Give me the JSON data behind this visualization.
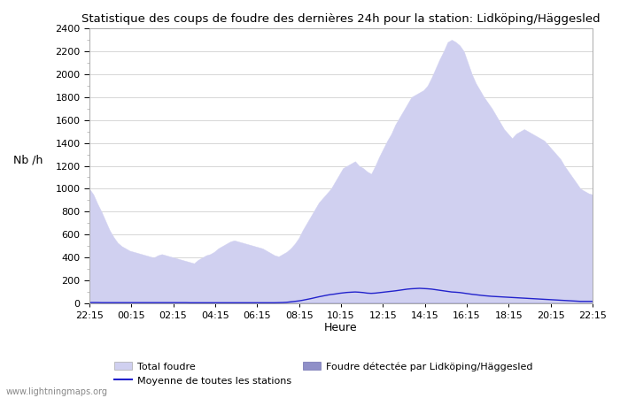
{
  "title": "Statistique des coups de foudre des dernières 24h pour la station: Lidköping/Häggesled",
  "xlabel": "Heure",
  "ylabel": "Nb /h",
  "x_ticks": [
    "22:15",
    "00:15",
    "02:15",
    "04:15",
    "06:15",
    "08:15",
    "10:15",
    "12:15",
    "14:15",
    "16:15",
    "18:15",
    "20:15",
    "22:15"
  ],
  "ylim": [
    0,
    2400
  ],
  "yticks": [
    0,
    200,
    400,
    600,
    800,
    1000,
    1200,
    1400,
    1600,
    1800,
    2000,
    2200,
    2400
  ],
  "bg_color": "#ffffff",
  "plot_bg_color": "#ffffff",
  "grid_color": "#d0d0d0",
  "fill_total_color": "#d0d0f0",
  "fill_total_edge": "#d0d0f0",
  "fill_local_color": "#9090c8",
  "fill_local_edge": "#9090c8",
  "mean_line_color": "#2222cc",
  "watermark": "www.lightningmaps.org",
  "legend": [
    {
      "label": "Total foudre",
      "color": "#d0d0f0",
      "edge": "#d0d0f0"
    },
    {
      "label": "Moyenne de toutes les stations",
      "color": "#2222cc",
      "type": "line"
    },
    {
      "label": "Foudre détectée par Lidköping/Häggesled",
      "color": "#9090c8",
      "edge": "#9090c8"
    }
  ],
  "total_foudre": [
    1000,
    950,
    870,
    800,
    720,
    640,
    580,
    530,
    500,
    480,
    460,
    450,
    440,
    430,
    420,
    410,
    400,
    420,
    430,
    420,
    410,
    400,
    390,
    380,
    370,
    360,
    350,
    380,
    400,
    420,
    430,
    450,
    480,
    500,
    520,
    540,
    550,
    540,
    530,
    520,
    510,
    500,
    490,
    480,
    460,
    440,
    420,
    410,
    430,
    450,
    480,
    520,
    570,
    640,
    700,
    760,
    820,
    880,
    920,
    960,
    1000,
    1060,
    1120,
    1180,
    1200,
    1220,
    1240,
    1200,
    1180,
    1150,
    1130,
    1200,
    1280,
    1350,
    1420,
    1480,
    1560,
    1620,
    1680,
    1740,
    1800,
    1820,
    1840,
    1860,
    1900,
    1970,
    2050,
    2130,
    2200,
    2280,
    2300,
    2280,
    2250,
    2200,
    2100,
    2000,
    1920,
    1860,
    1800,
    1750,
    1700,
    1640,
    1580,
    1520,
    1480,
    1440,
    1480,
    1500,
    1520,
    1500,
    1480,
    1460,
    1440,
    1420,
    1380,
    1340,
    1300,
    1260,
    1200,
    1150,
    1100,
    1050,
    1000,
    980,
    960,
    950
  ],
  "local_foudre": [
    0,
    0,
    0,
    0,
    0,
    0,
    0,
    0,
    0,
    0,
    0,
    0,
    0,
    0,
    0,
    0,
    0,
    0,
    0,
    0,
    0,
    0,
    0,
    0,
    0,
    0,
    0,
    0,
    0,
    0,
    0,
    0,
    0,
    0,
    0,
    0,
    0,
    0,
    0,
    0,
    0,
    0,
    0,
    0,
    0,
    0,
    0,
    0,
    0,
    0,
    0,
    0,
    0,
    0,
    0,
    0,
    0,
    0,
    0,
    0,
    0,
    0,
    0,
    0,
    0,
    0,
    0,
    0,
    0,
    0,
    0,
    0,
    0,
    0,
    0,
    0,
    0,
    0,
    0,
    0,
    0,
    0,
    0,
    0,
    0,
    0,
    0,
    0,
    0,
    0,
    0,
    0,
    0,
    0,
    0,
    0,
    0,
    0,
    0,
    0,
    0,
    0,
    0,
    0,
    0,
    0,
    0,
    0,
    0,
    0,
    0,
    0,
    0,
    0,
    0,
    0,
    0,
    0,
    0,
    0,
    0,
    0,
    0,
    0,
    0,
    0
  ],
  "mean_line": [
    8,
    8,
    8,
    7,
    7,
    7,
    7,
    7,
    7,
    7,
    7,
    7,
    7,
    7,
    7,
    7,
    7,
    7,
    7,
    7,
    7,
    7,
    7,
    7,
    7,
    6,
    6,
    6,
    6,
    6,
    6,
    6,
    6,
    6,
    6,
    6,
    6,
    6,
    6,
    6,
    6,
    6,
    6,
    6,
    6,
    6,
    6,
    7,
    8,
    10,
    14,
    18,
    22,
    28,
    35,
    42,
    50,
    58,
    65,
    72,
    78,
    82,
    88,
    92,
    96,
    98,
    100,
    98,
    95,
    90,
    88,
    90,
    94,
    98,
    102,
    106,
    110,
    115,
    120,
    125,
    128,
    130,
    132,
    130,
    128,
    125,
    120,
    115,
    110,
    105,
    100,
    98,
    95,
    90,
    85,
    80,
    76,
    72,
    68,
    65,
    62,
    60,
    58,
    56,
    54,
    52,
    50,
    48,
    46,
    44,
    42,
    40,
    38,
    36,
    34,
    32,
    30,
    28,
    26,
    24,
    22,
    20,
    18,
    18,
    18,
    18
  ]
}
